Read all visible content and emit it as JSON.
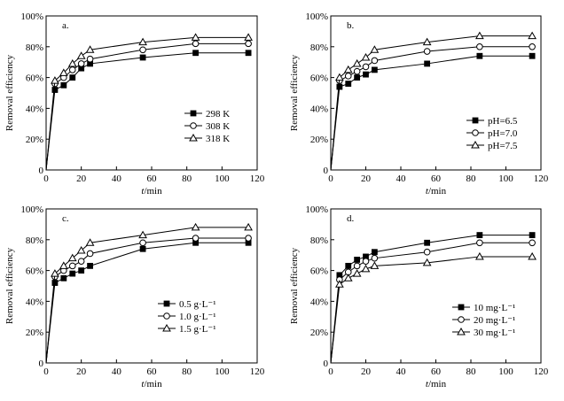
{
  "figure": {
    "x_axis_label_italic": "t",
    "x_axis_label_unit": "/min",
    "y_axis_label": "Removal efficiency"
  },
  "chart_data": [
    {
      "type": "line",
      "panel_label": "a.",
      "xlabel": "t/min",
      "ylabel": "Removal efficiency",
      "xlim": [
        0,
        120
      ],
      "ylim": [
        0,
        100
      ],
      "x_ticks": [
        0,
        20,
        40,
        60,
        80,
        100,
        120
      ],
      "y_ticks": [
        0,
        20,
        40,
        60,
        80,
        100
      ],
      "y_tick_labels": [
        "0",
        "20%",
        "40%",
        "60%",
        "80%",
        "100%"
      ],
      "legend_position": "lower-right",
      "series": [
        {
          "name": "298 K",
          "marker": "square",
          "x": [
            0,
            5,
            10,
            15,
            20,
            25,
            55,
            85,
            115
          ],
          "y": [
            0,
            52,
            55,
            60,
            66,
            69,
            73,
            76,
            76
          ]
        },
        {
          "name": "308 K",
          "marker": "circle",
          "x": [
            0,
            5,
            10,
            15,
            20,
            25,
            55,
            85,
            115
          ],
          "y": [
            0,
            56,
            60,
            65,
            69,
            72,
            78,
            82,
            82
          ]
        },
        {
          "name": "318 K",
          "marker": "triangle",
          "x": [
            0,
            5,
            10,
            15,
            20,
            25,
            55,
            85,
            115
          ],
          "y": [
            0,
            58,
            63,
            69,
            74,
            78,
            83,
            86,
            86
          ]
        }
      ]
    },
    {
      "type": "line",
      "panel_label": "b.",
      "xlabel": "t/min",
      "ylabel": "Removal efficiency",
      "xlim": [
        0,
        120
      ],
      "ylim": [
        0,
        100
      ],
      "x_ticks": [
        0,
        20,
        40,
        60,
        80,
        100,
        120
      ],
      "y_ticks": [
        0,
        20,
        40,
        60,
        80,
        100
      ],
      "y_tick_labels": [
        "0",
        "20%",
        "40%",
        "60%",
        "80%",
        "100%"
      ],
      "legend_position": "lower-right",
      "series": [
        {
          "name": "pH=6.5",
          "marker": "square",
          "x": [
            0,
            5,
            10,
            15,
            20,
            25,
            55,
            85,
            115
          ],
          "y": [
            0,
            54,
            56,
            60,
            62,
            65,
            69,
            74,
            74
          ]
        },
        {
          "name": "pH=7.0",
          "marker": "circle",
          "x": [
            0,
            5,
            10,
            15,
            20,
            25,
            55,
            85,
            115
          ],
          "y": [
            0,
            58,
            61,
            64,
            67,
            71,
            77,
            80,
            80
          ]
        },
        {
          "name": "pH=7.5",
          "marker": "triangle",
          "x": [
            0,
            5,
            10,
            15,
            20,
            25,
            55,
            85,
            115
          ],
          "y": [
            0,
            60,
            65,
            69,
            73,
            78,
            83,
            87,
            87
          ]
        }
      ]
    },
    {
      "type": "line",
      "panel_label": "c.",
      "xlabel": "t/min",
      "ylabel": "Removal efficiency",
      "xlim": [
        0,
        120
      ],
      "ylim": [
        0,
        100
      ],
      "x_ticks": [
        0,
        20,
        40,
        60,
        80,
        100,
        120
      ],
      "y_ticks": [
        0,
        20,
        40,
        60,
        80,
        100
      ],
      "y_tick_labels": [
        "0",
        "20%",
        "40%",
        "60%",
        "80%",
        "100%"
      ],
      "legend_position": "lower-right",
      "series": [
        {
          "name": "0.5 g·L⁻¹",
          "marker": "square",
          "x": [
            0,
            5,
            10,
            15,
            20,
            25,
            55,
            85,
            115
          ],
          "y": [
            0,
            52,
            55,
            58,
            60,
            63,
            74,
            78,
            78
          ]
        },
        {
          "name": "1.0 g·L⁻¹",
          "marker": "circle",
          "x": [
            0,
            5,
            10,
            15,
            20,
            25,
            55,
            85,
            115
          ],
          "y": [
            0,
            56,
            60,
            63,
            66,
            71,
            78,
            81,
            81
          ]
        },
        {
          "name": "1.5 g·L⁻¹",
          "marker": "triangle",
          "x": [
            0,
            5,
            10,
            15,
            20,
            25,
            55,
            85,
            115
          ],
          "y": [
            0,
            58,
            63,
            68,
            73,
            78,
            83,
            88,
            88
          ]
        }
      ]
    },
    {
      "type": "line",
      "panel_label": "d.",
      "xlabel": "t/min",
      "ylabel": "Removal efficiency",
      "xlim": [
        0,
        120
      ],
      "ylim": [
        0,
        100
      ],
      "x_ticks": [
        0,
        20,
        40,
        60,
        80,
        100,
        120
      ],
      "y_ticks": [
        0,
        20,
        40,
        60,
        80,
        100
      ],
      "y_tick_labels": [
        "0",
        "20%",
        "40%",
        "60%",
        "80%",
        "100%"
      ],
      "legend_position": "lower-right",
      "series": [
        {
          "name": "10 mg·L⁻¹",
          "marker": "square",
          "x": [
            0,
            5,
            10,
            15,
            20,
            25,
            55,
            85,
            115
          ],
          "y": [
            0,
            57,
            63,
            67,
            69,
            72,
            78,
            83,
            83
          ]
        },
        {
          "name": "20 mg·L⁻¹",
          "marker": "circle",
          "x": [
            0,
            5,
            10,
            15,
            20,
            25,
            55,
            85,
            115
          ],
          "y": [
            0,
            54,
            59,
            63,
            66,
            68,
            72,
            78,
            78
          ]
        },
        {
          "name": "30 mg·L⁻¹",
          "marker": "triangle",
          "x": [
            0,
            5,
            10,
            15,
            20,
            25,
            55,
            85,
            115
          ],
          "y": [
            0,
            51,
            55,
            58,
            61,
            63,
            65,
            69,
            69
          ]
        }
      ]
    }
  ]
}
